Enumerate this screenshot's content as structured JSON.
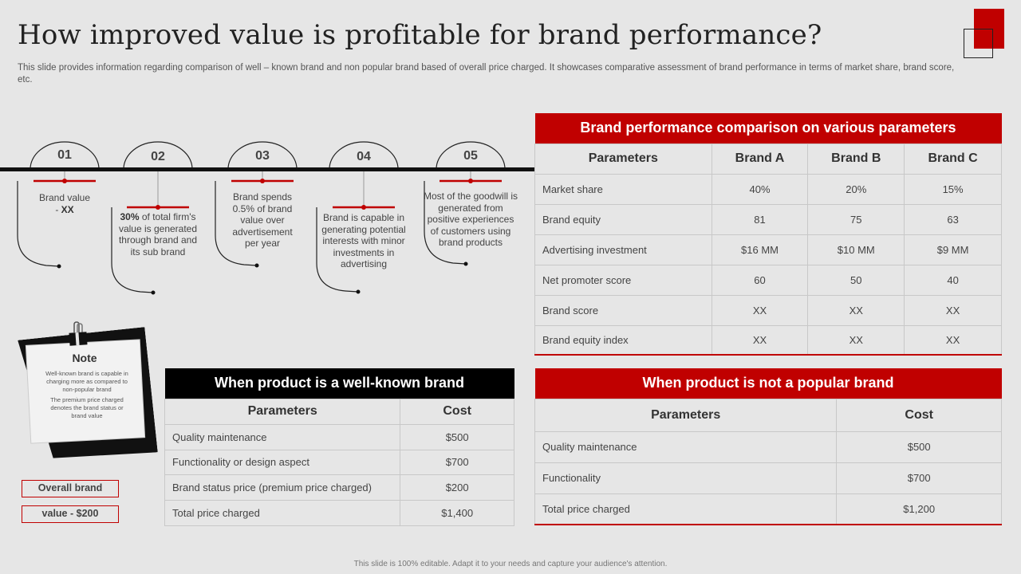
{
  "header": {
    "title": "How improved value is profitable for brand performance?",
    "subtitle": "This slide provides information regarding comparison of well – known brand and non popular brand based of overall price charged. It showcases comparative assessment of brand performance in terms of market share, brand score, etc."
  },
  "timeline": {
    "steps": [
      {
        "num": "01",
        "text_pre": "Brand value - ",
        "text_bold": "XX",
        "text_post": ""
      },
      {
        "num": "02",
        "text_pre": "",
        "text_bold": "30%",
        "text_post": " of total firm's value is generated through brand and its sub brand"
      },
      {
        "num": "03",
        "text_pre": "Brand spends 0.5% of brand value over advertisement per year",
        "text_bold": "",
        "text_post": ""
      },
      {
        "num": "04",
        "text_pre": "Brand is capable in generating potential interests with minor investments in advertising",
        "text_bold": "",
        "text_post": ""
      },
      {
        "num": "05",
        "text_pre": "Most of the goodwill is generated from positive experiences of customers using brand products",
        "text_bold": "",
        "text_post": ""
      }
    ]
  },
  "note": {
    "title": "Note",
    "line1": "Well-known brand is capable in charging more as compared to non-popular brand",
    "line2": "The premium price charged denotes the brand status or brand value"
  },
  "overall": {
    "label1": "Overall brand",
    "label2": "value - $200"
  },
  "performance_table": {
    "title": "Brand performance comparison on various parameters",
    "headers": [
      "Parameters",
      "Brand A",
      "Brand B",
      "Brand C"
    ],
    "rows": [
      [
        "Market share",
        "40%",
        "20%",
        "15%"
      ],
      [
        "Brand equity",
        "81",
        "75",
        "63"
      ],
      [
        "Advertising investment",
        "$16 MM",
        "$10 MM",
        "$9 MM"
      ],
      [
        "Net promoter score",
        "60",
        "50",
        "40"
      ],
      [
        "Brand score",
        "XX",
        "XX",
        "XX"
      ],
      [
        "Brand equity index",
        "XX",
        "XX",
        "XX"
      ]
    ]
  },
  "wellknown_table": {
    "title": "When product is a well-known brand",
    "headers": [
      "Parameters",
      "Cost"
    ],
    "rows": [
      [
        "Quality maintenance",
        "$500"
      ],
      [
        "Functionality or design aspect",
        "$700"
      ],
      [
        "Brand status price (premium price charged)",
        "$200"
      ],
      [
        "Total price charged",
        "$1,400"
      ]
    ]
  },
  "notpopular_table": {
    "title": "When product is not a popular brand",
    "headers": [
      "Parameters",
      "Cost"
    ],
    "rows": [
      [
        "Quality maintenance",
        "$500"
      ],
      [
        "Functionality",
        "$700"
      ],
      [
        "Total price charged",
        "$1,200"
      ]
    ]
  },
  "footer": {
    "text": "This slide is 100% editable. Adapt it to your needs and capture your audience's attention."
  },
  "colors": {
    "accent": "#c00000",
    "dark": "#000000",
    "background": "#e6e6e6"
  }
}
